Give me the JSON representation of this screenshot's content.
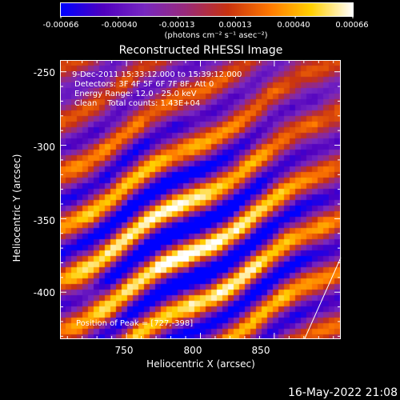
{
  "colorbar": {
    "ticks": [
      "-0.00066",
      "-0.00040",
      "-0.00013",
      "0.00013",
      "0.00040",
      "0.00066"
    ],
    "tick_values": [
      -0.00066,
      -0.0004,
      -0.00013,
      0.00013,
      0.0004,
      0.00066
    ],
    "units": "(photons cm⁻² s⁻¹ asec⁻²)",
    "colors": [
      "#0000ff",
      "#5000c0",
      "#7828c0",
      "#9a2a7a",
      "#c83210",
      "#ff7800",
      "#ffd000",
      "#ffffff"
    ]
  },
  "chart_data": {
    "type": "heatmap",
    "title": "Reconstructed RHESSI Image",
    "xlabel": "Heliocentric X (arcsec)",
    "ylabel": "Heliocentric Y (arcsec)",
    "xlim": [
      705,
      895
    ],
    "ylim": [
      -432,
      -242
    ],
    "xticks": [
      750,
      800,
      850
    ],
    "xtick_labels": [
      "750",
      "800",
      "850"
    ],
    "yticks": [
      -250,
      -300,
      -350,
      -400
    ],
    "ytick_labels": [
      "-250",
      "-300",
      "-350",
      "-400"
    ],
    "zlim": [
      -0.00066,
      0.00066
    ],
    "peak": [
      727,
      -398
    ],
    "annotations": {
      "time": "9-Dec-2011 15:33:12.000 to 15:39:12.000",
      "detectors": "Detectors: 3F 4F 5F 6F 7F 8F, Att 0",
      "energy": "Energy Range: 12.0 - 25.0 keV",
      "clean": "Clean    Total counts: 1.43E+04",
      "peak_label": "Position of Peak = [727,-398]"
    },
    "pattern": "diagonal ridges of positive flux running from lower-left to upper-right, brightest near x 735-835 arcsec, y -410 to -330 arcsec",
    "footer_date": "16-May-2022 21:08"
  }
}
